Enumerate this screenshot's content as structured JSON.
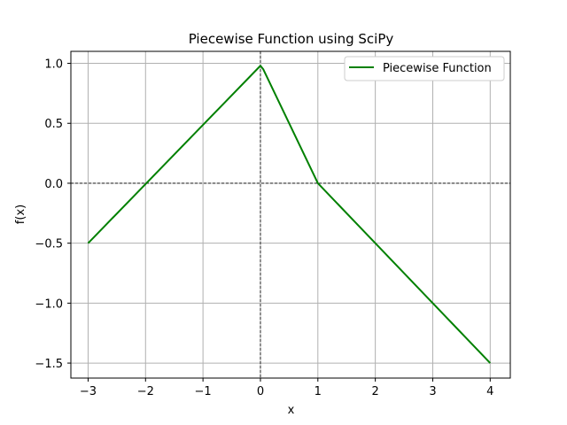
{
  "chart_data": {
    "type": "line",
    "title": "Piecewise Function using SciPy",
    "xlabel": "x",
    "ylabel": "f(x)",
    "xlim": [
      -3.3,
      4.35
    ],
    "ylim": [
      -1.625,
      1.1
    ],
    "xticks": [
      -3,
      -2,
      -1,
      0,
      1,
      2,
      3,
      4
    ],
    "xtick_labels": [
      "−3",
      "−2",
      "−1",
      "0",
      "1",
      "2",
      "3",
      "4"
    ],
    "yticks": [
      -1.5,
      -1.0,
      -0.5,
      0.0,
      0.5,
      1.0
    ],
    "ytick_labels": [
      "−1.5",
      "−1.0",
      "−0.5",
      "0.0",
      "0.5",
      "1.0"
    ],
    "grid": true,
    "legend_position": "top-right",
    "reference_lines": {
      "horizontal_y": 0,
      "vertical_x": 0,
      "style": "dashed",
      "color": "#000000"
    },
    "series": [
      {
        "name": "Piecewise Function",
        "color": "#008000",
        "x": [
          -3,
          0,
          0.05,
          1,
          4
        ],
        "y": [
          -0.5,
          0.98,
          0.95,
          0.0,
          -1.5
        ]
      }
    ]
  }
}
